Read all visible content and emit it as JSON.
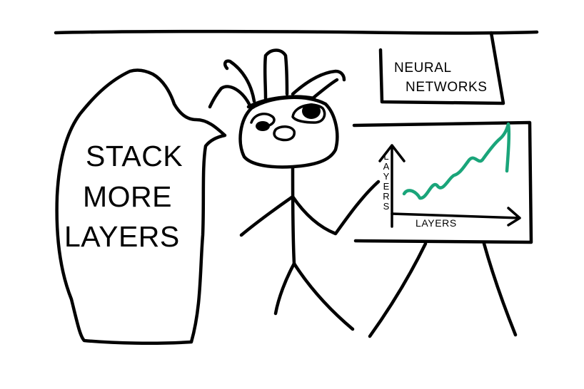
{
  "speech_bubble": {
    "lines": [
      "STACK",
      "MORE",
      "LAYERS"
    ]
  },
  "sign": {
    "lines": [
      "NEURAL",
      "NETWORKS"
    ]
  },
  "whiteboard_chart": {
    "xlabel": "LAYERS",
    "ylabel": "LAYERS",
    "ylabel_letters": [
      "L",
      "A",
      "Y",
      "E",
      "R",
      "S"
    ]
  },
  "colors": {
    "ink": "#000000",
    "trend_line": "#1aa57a",
    "background": "#ffffff"
  }
}
